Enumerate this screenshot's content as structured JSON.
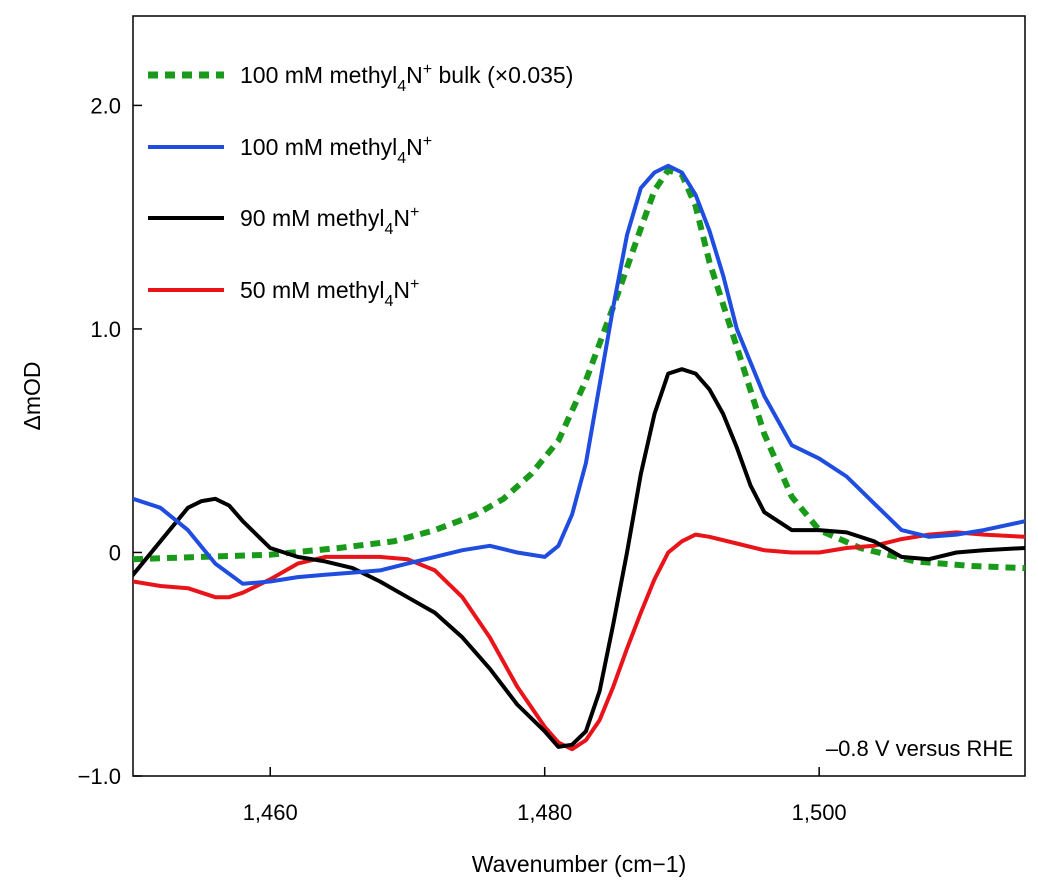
{
  "chart_data": {
    "type": "line",
    "title": "",
    "xlabel": "Wavenumber (cm−1)",
    "ylabel": "ΔmOD",
    "xlim": [
      1450,
      1515
    ],
    "ylim": [
      -1.0,
      2.4
    ],
    "xticks": [
      1460,
      1480,
      1500
    ],
    "xtick_labels": [
      "1,460",
      "1,480",
      "1,500"
    ],
    "yticks": [
      -1.0,
      0,
      1.0,
      2.0
    ],
    "ytick_labels": [
      "−1.0",
      "0",
      "1.0",
      "2.0"
    ],
    "grid": false,
    "legend_position": "top-left",
    "annotation": "–0.8 V versus RHE",
    "series": [
      {
        "name": "100 mM methyl4N+ bulk (×0.035)",
        "label_prefix": "100 mM methyl",
        "label_sub": "4",
        "label_mid": "N",
        "label_sup": "+",
        "label_suffix": " bulk (×0.035)",
        "color": "#1a9a1a",
        "style": "dashed",
        "x": [
          1450,
          1455,
          1460,
          1465,
          1469,
          1472,
          1475,
          1477,
          1479,
          1481,
          1483,
          1485,
          1487,
          1488,
          1489,
          1490,
          1491,
          1492,
          1494,
          1496,
          1498,
          1500,
          1503,
          1507,
          1511,
          1515
        ],
        "values": [
          -0.03,
          -0.02,
          -0.01,
          0.02,
          0.05,
          0.1,
          0.17,
          0.24,
          0.35,
          0.5,
          0.77,
          1.1,
          1.45,
          1.62,
          1.71,
          1.69,
          1.55,
          1.3,
          0.92,
          0.53,
          0.25,
          0.1,
          0.02,
          -0.04,
          -0.06,
          -0.07
        ]
      },
      {
        "name": "100 mM methyl4N+",
        "label_prefix": "100 mM methyl",
        "label_sub": "4",
        "label_mid": "N",
        "label_sup": "+",
        "label_suffix": "",
        "color": "#1f4de0",
        "style": "solid",
        "x": [
          1450,
          1452,
          1454,
          1456,
          1458,
          1460,
          1462,
          1464,
          1466,
          1468,
          1470,
          1472,
          1474,
          1476,
          1478,
          1480,
          1481,
          1482,
          1483,
          1484,
          1485,
          1486,
          1487,
          1488,
          1489,
          1490,
          1491,
          1492,
          1493,
          1494,
          1496,
          1498,
          1500,
          1502,
          1504,
          1506,
          1508,
          1510,
          1512,
          1515
        ],
        "values": [
          0.24,
          0.2,
          0.1,
          -0.05,
          -0.14,
          -0.13,
          -0.11,
          -0.1,
          -0.09,
          -0.08,
          -0.05,
          -0.02,
          0.01,
          0.03,
          0.0,
          -0.02,
          0.03,
          0.17,
          0.4,
          0.75,
          1.1,
          1.42,
          1.63,
          1.7,
          1.73,
          1.7,
          1.6,
          1.44,
          1.24,
          1.0,
          0.7,
          0.48,
          0.42,
          0.34,
          0.22,
          0.1,
          0.07,
          0.08,
          0.1,
          0.14
        ]
      },
      {
        "name": "90 mM methyl4N+",
        "label_prefix": "90 mM methyl",
        "label_sub": "4",
        "label_mid": "N",
        "label_sup": "+",
        "label_suffix": "",
        "color": "#000000",
        "style": "solid",
        "x": [
          1450,
          1452,
          1454,
          1455,
          1456,
          1457,
          1458,
          1460,
          1462,
          1464,
          1466,
          1468,
          1470,
          1472,
          1474,
          1476,
          1478,
          1480,
          1481,
          1482,
          1483,
          1484,
          1485,
          1486,
          1487,
          1488,
          1489,
          1490,
          1491,
          1492,
          1493,
          1494,
          1495,
          1496,
          1498,
          1500,
          1502,
          1504,
          1506,
          1508,
          1510,
          1512,
          1515
        ],
        "values": [
          -0.1,
          0.05,
          0.2,
          0.23,
          0.24,
          0.21,
          0.14,
          0.02,
          -0.02,
          -0.04,
          -0.07,
          -0.13,
          -0.2,
          -0.27,
          -0.38,
          -0.52,
          -0.68,
          -0.8,
          -0.87,
          -0.86,
          -0.8,
          -0.62,
          -0.32,
          0.0,
          0.35,
          0.62,
          0.8,
          0.82,
          0.8,
          0.73,
          0.62,
          0.47,
          0.3,
          0.18,
          0.1,
          0.1,
          0.09,
          0.05,
          -0.02,
          -0.03,
          0.0,
          0.01,
          0.02
        ]
      },
      {
        "name": "50 mM methyl4N+",
        "label_prefix": "50 mM methyl",
        "label_sub": "4",
        "label_mid": "N",
        "label_sup": "+",
        "label_suffix": "",
        "color": "#e8141a",
        "style": "solid",
        "x": [
          1450,
          1452,
          1454,
          1455,
          1456,
          1457,
          1458,
          1460,
          1462,
          1464,
          1466,
          1468,
          1470,
          1472,
          1474,
          1476,
          1478,
          1480,
          1481,
          1482,
          1483,
          1484,
          1485,
          1486,
          1487,
          1488,
          1489,
          1490,
          1491,
          1492,
          1494,
          1496,
          1498,
          1500,
          1502,
          1504,
          1506,
          1508,
          1510,
          1512,
          1515
        ],
        "values": [
          -0.13,
          -0.15,
          -0.16,
          -0.18,
          -0.2,
          -0.2,
          -0.18,
          -0.12,
          -0.05,
          -0.02,
          -0.02,
          -0.02,
          -0.03,
          -0.08,
          -0.2,
          -0.38,
          -0.6,
          -0.78,
          -0.85,
          -0.88,
          -0.84,
          -0.75,
          -0.6,
          -0.43,
          -0.27,
          -0.12,
          0.0,
          0.05,
          0.08,
          0.07,
          0.04,
          0.01,
          0.0,
          0.0,
          0.02,
          0.03,
          0.06,
          0.08,
          0.09,
          0.08,
          0.07
        ]
      }
    ]
  }
}
